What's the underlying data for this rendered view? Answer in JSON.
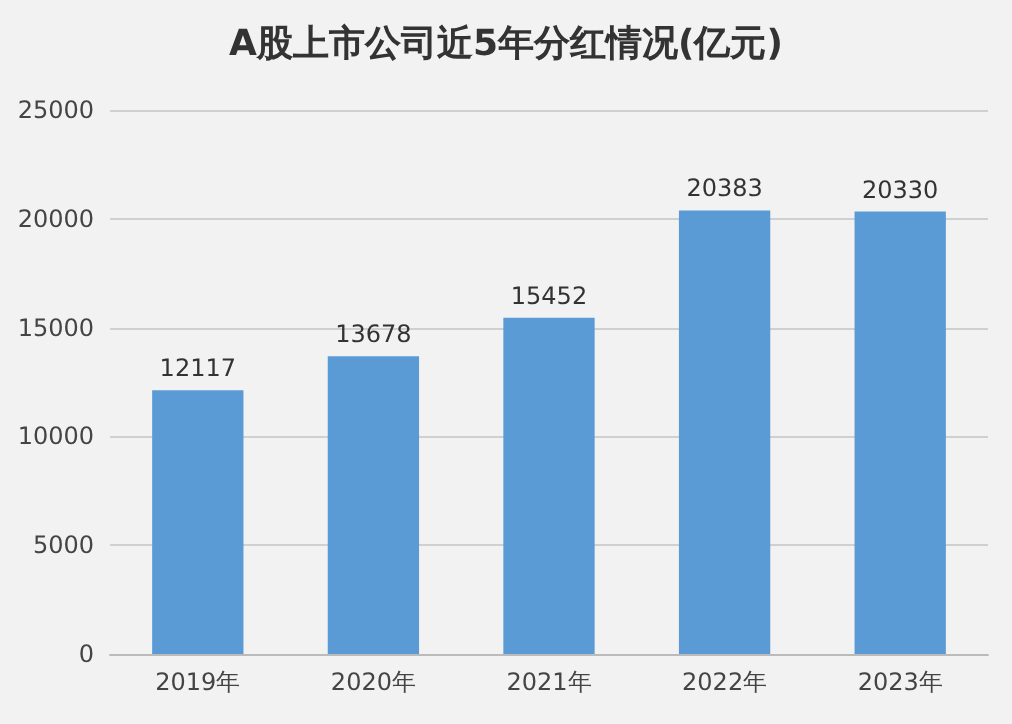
{
  "chart_data": {
    "type": "bar",
    "title": "A股上市公司近5年分红情况(亿元)",
    "categories": [
      "2019年",
      "2020年",
      "2021年",
      "2022年",
      "2023年"
    ],
    "values": [
      12117,
      13678,
      15452,
      20383,
      20330
    ],
    "color": "#5b9bd5",
    "ylim": [
      0,
      25000
    ],
    "yticks": [
      0,
      5000,
      10000,
      15000,
      20000,
      25000
    ],
    "grid": "y",
    "data_labels": true
  }
}
